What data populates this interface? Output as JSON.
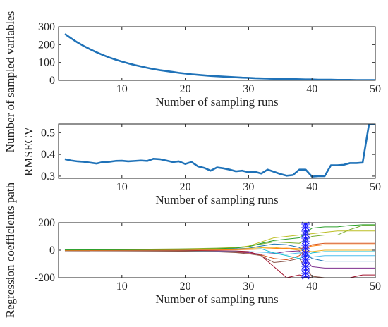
{
  "chart_data": [
    {
      "type": "line",
      "xlabel": "Number of sampling runs",
      "ylabel": "Number of sampled variables",
      "xlim": [
        0,
        50
      ],
      "ylim": [
        0,
        300
      ],
      "x_ticks": [
        10,
        20,
        30,
        40,
        50
      ],
      "y_ticks": [
        0,
        100,
        200,
        300
      ],
      "x_tick_labels": [
        "10",
        "20",
        "30",
        "40",
        "50"
      ],
      "y_tick_labels": [
        "0",
        "100",
        "200",
        "300"
      ],
      "series": [
        {
          "color": "#1f72b8",
          "x": [
            1,
            2,
            3,
            4,
            5,
            6,
            7,
            8,
            9,
            10,
            11,
            12,
            13,
            14,
            15,
            16,
            17,
            18,
            19,
            20,
            21,
            22,
            23,
            24,
            25,
            26,
            27,
            28,
            29,
            30,
            31,
            32,
            33,
            34,
            35,
            36,
            37,
            38,
            39,
            40,
            41,
            42,
            43,
            44,
            45,
            46,
            47,
            48,
            49,
            50
          ],
          "y": [
            260,
            235,
            212,
            192,
            174,
            157,
            142,
            128,
            116,
            105,
            95,
            86,
            78,
            70,
            63,
            57,
            52,
            47,
            42,
            38,
            34,
            31,
            28,
            25,
            23,
            21,
            19,
            17,
            15,
            14,
            12,
            11,
            10,
            9,
            8,
            7,
            7,
            6,
            5,
            5,
            4,
            4,
            4,
            3,
            3,
            3,
            2,
            2,
            2,
            2
          ]
        }
      ]
    },
    {
      "type": "line",
      "xlabel": "Number of sampling runs",
      "ylabel": "RMSECV",
      "xlim": [
        0,
        50
      ],
      "ylim": [
        0.29,
        0.54
      ],
      "x_ticks": [
        10,
        20,
        30,
        40,
        50
      ],
      "y_ticks": [
        0.3,
        0.4,
        0.5
      ],
      "x_tick_labels": [
        "10",
        "20",
        "30",
        "40",
        "50"
      ],
      "y_tick_labels": [
        "0.3",
        "0.4",
        "0.5"
      ],
      "series": [
        {
          "color": "#1f72b8",
          "x": [
            1,
            2,
            3,
            4,
            5,
            6,
            7,
            8,
            9,
            10,
            11,
            12,
            13,
            14,
            15,
            16,
            17,
            18,
            19,
            20,
            21,
            22,
            23,
            24,
            25,
            26,
            27,
            28,
            29,
            30,
            31,
            32,
            33,
            34,
            35,
            36,
            37,
            38,
            39,
            40,
            41,
            42,
            43,
            44,
            45,
            46,
            47,
            48,
            49,
            50
          ],
          "y": [
            0.378,
            0.372,
            0.368,
            0.366,
            0.362,
            0.358,
            0.365,
            0.366,
            0.37,
            0.371,
            0.368,
            0.37,
            0.372,
            0.37,
            0.38,
            0.378,
            0.372,
            0.365,
            0.368,
            0.356,
            0.365,
            0.345,
            0.338,
            0.325,
            0.34,
            0.336,
            0.33,
            0.322,
            0.325,
            0.318,
            0.32,
            0.312,
            0.33,
            0.32,
            0.31,
            0.302,
            0.305,
            0.33,
            0.33,
            0.298,
            0.3,
            0.3,
            0.35,
            0.35,
            0.352,
            0.36,
            0.36,
            0.362,
            0.538,
            0.538
          ]
        }
      ]
    },
    {
      "type": "line",
      "xlabel": "Number of sampling runs",
      "ylabel": "Regression coefficients path",
      "xlim": [
        0,
        50
      ],
      "ylim": [
        -200,
        200
      ],
      "x_ticks": [
        10,
        20,
        30,
        40,
        50
      ],
      "y_ticks": [
        -200,
        0,
        200
      ],
      "x_tick_labels": [
        "10",
        "20",
        "30",
        "40",
        "50"
      ],
      "y_tick_labels": [
        "-200",
        "0",
        "200"
      ],
      "marker": {
        "x": 39,
        "style": "asterisk-line",
        "color": "#1a1aff"
      },
      "series": [
        {
          "color": "#1f77b4",
          "x": [
            1,
            10,
            20,
            25,
            28,
            30,
            32,
            34,
            36,
            38,
            40,
            42,
            44,
            46,
            48,
            50
          ],
          "y": [
            2,
            3,
            5,
            8,
            10,
            14,
            30,
            45,
            40,
            20,
            -60,
            -80,
            -80,
            -80,
            -80,
            -80
          ]
        },
        {
          "color": "#d95319",
          "x": [
            1,
            10,
            20,
            25,
            28,
            30,
            32,
            34,
            36,
            38,
            40,
            42,
            44,
            46,
            48,
            50
          ],
          "y": [
            -3,
            -4,
            -6,
            -10,
            -15,
            -20,
            -35,
            -60,
            -70,
            -40,
            40,
            50,
            50,
            50,
            50,
            50
          ]
        },
        {
          "color": "#edb120",
          "x": [
            1,
            10,
            20,
            25,
            28,
            30,
            32,
            34,
            36,
            38,
            40,
            42,
            44,
            46,
            48,
            50
          ],
          "y": [
            1,
            2,
            3,
            5,
            8,
            12,
            18,
            20,
            10,
            0,
            -10,
            0,
            0,
            0,
            0,
            0
          ]
        },
        {
          "color": "#7e2f8e",
          "x": [
            1,
            10,
            20,
            25,
            28,
            30,
            32,
            34,
            36,
            38,
            40,
            42,
            44,
            46,
            48,
            50
          ],
          "y": [
            -1,
            -2,
            -4,
            -8,
            -12,
            -18,
            -30,
            -25,
            -10,
            -5,
            -120,
            -130,
            -130,
            -130,
            -130,
            -130
          ]
        },
        {
          "color": "#77ac30",
          "x": [
            1,
            10,
            20,
            25,
            28,
            30,
            32,
            34,
            36,
            38,
            40,
            42,
            44,
            46,
            48,
            50
          ],
          "y": [
            4,
            6,
            10,
            15,
            20,
            28,
            45,
            60,
            55,
            50,
            100,
            110,
            110,
            150,
            180,
            180
          ]
        },
        {
          "color": "#4dbeee",
          "x": [
            1,
            10,
            20,
            25,
            28,
            30,
            32,
            34,
            36,
            38,
            40,
            42,
            44,
            46,
            48,
            50
          ],
          "y": [
            -2,
            -3,
            -5,
            -6,
            -8,
            -10,
            -15,
            -20,
            -30,
            -20,
            -50,
            -40,
            -40,
            -40,
            -40,
            -40
          ]
        },
        {
          "color": "#a2142f",
          "x": [
            1,
            10,
            20,
            25,
            28,
            30,
            32,
            34,
            36,
            38,
            40,
            42,
            44,
            46,
            48,
            50
          ],
          "y": [
            0,
            -1,
            -2,
            -4,
            -6,
            -10,
            -40,
            -120,
            -200,
            -180,
            -200,
            -200,
            -200,
            -200,
            -180,
            -180
          ]
        },
        {
          "color": "#8c564b",
          "x": [
            1,
            10,
            20,
            25,
            28,
            30,
            32,
            34,
            36,
            38,
            40,
            42,
            44,
            46,
            48,
            50
          ],
          "y": [
            -5,
            -6,
            -8,
            -12,
            -18,
            -26,
            -40,
            -90,
            -80,
            -60,
            -190,
            -200,
            -200,
            -200,
            -200,
            -200
          ]
        },
        {
          "color": "#bcbd22",
          "x": [
            1,
            10,
            20,
            25,
            28,
            30,
            32,
            34,
            36,
            38,
            40,
            42,
            44,
            46,
            48,
            50
          ],
          "y": [
            3,
            4,
            8,
            12,
            18,
            30,
            60,
            90,
            100,
            110,
            120,
            130,
            140,
            140,
            140,
            140
          ]
        },
        {
          "color": "#17becf",
          "x": [
            1,
            10,
            20,
            25,
            28,
            30,
            32,
            34,
            36,
            38,
            40,
            42,
            44,
            46,
            48,
            50
          ],
          "y": [
            1,
            1,
            2,
            3,
            4,
            6,
            10,
            -20,
            -40,
            -60,
            -20,
            -10,
            -10,
            -10,
            -10,
            -10
          ]
        },
        {
          "color": "#ff7f0e",
          "x": [
            1,
            10,
            20,
            25,
            28,
            30,
            32,
            34,
            36,
            38,
            40,
            42,
            44,
            46,
            48,
            50
          ],
          "y": [
            -1,
            0,
            1,
            2,
            3,
            5,
            8,
            12,
            15,
            10,
            30,
            40,
            40,
            40,
            40,
            40
          ]
        },
        {
          "color": "#2ca02c",
          "x": [
            1,
            10,
            20,
            25,
            28,
            30,
            32,
            34,
            36,
            38,
            40,
            42,
            44,
            46,
            48,
            50
          ],
          "y": [
            2,
            3,
            6,
            10,
            16,
            25,
            50,
            70,
            80,
            90,
            160,
            170,
            170,
            180,
            185,
            185
          ]
        }
      ]
    }
  ]
}
